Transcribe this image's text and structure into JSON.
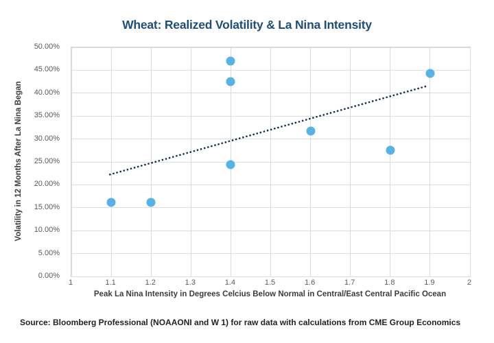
{
  "chart_data": {
    "type": "scatter",
    "title": "Wheat: Realized Volatility & La Nina Intensity",
    "xlabel": "Peak La Nina Intensity in Degrees Celcius Below Normal in Central/East Central Pacific Ocean",
    "ylabel": "Volatility in 12 Months After La Nina Began",
    "xlim": [
      1,
      2
    ],
    "ylim": [
      0,
      0.5
    ],
    "grid": true,
    "legend": "none",
    "x_ticks": [
      {
        "value": 1.0,
        "label": "1"
      },
      {
        "value": 1.1,
        "label": "1.1"
      },
      {
        "value": 1.2,
        "label": "1.2"
      },
      {
        "value": 1.3,
        "label": "1.3"
      },
      {
        "value": 1.4,
        "label": "1.4"
      },
      {
        "value": 1.5,
        "label": "1.5"
      },
      {
        "value": 1.6,
        "label": "1.6"
      },
      {
        "value": 1.7,
        "label": "1.7"
      },
      {
        "value": 1.8,
        "label": "1.8"
      },
      {
        "value": 1.9,
        "label": "1.9"
      },
      {
        "value": 2.0,
        "label": "2"
      }
    ],
    "y_ticks": [
      {
        "value": 0.0,
        "label": "0.00%"
      },
      {
        "value": 0.05,
        "label": "5.00%"
      },
      {
        "value": 0.1,
        "label": "10.00%"
      },
      {
        "value": 0.15,
        "label": "15.00%"
      },
      {
        "value": 0.2,
        "label": "20.00%"
      },
      {
        "value": 0.25,
        "label": "25.00%"
      },
      {
        "value": 0.3,
        "label": "30.00%"
      },
      {
        "value": 0.35,
        "label": "35.00%"
      },
      {
        "value": 0.4,
        "label": "40.00%"
      },
      {
        "value": 0.45,
        "label": "45.00%"
      },
      {
        "value": 0.5,
        "label": "50.00%"
      }
    ],
    "points": [
      {
        "x": 1.1,
        "y": 0.161
      },
      {
        "x": 1.2,
        "y": 0.161
      },
      {
        "x": 1.4,
        "y": 0.244
      },
      {
        "x": 1.4,
        "y": 0.425
      },
      {
        "x": 1.4,
        "y": 0.47
      },
      {
        "x": 1.6,
        "y": 0.318
      },
      {
        "x": 1.8,
        "y": 0.275
      },
      {
        "x": 1.9,
        "y": 0.443
      }
    ],
    "trendline": {
      "style": "dotted",
      "x1": 1.095,
      "y1": 0.222,
      "x2": 1.89,
      "y2": 0.415
    },
    "colors": {
      "marker": "#57B3E6",
      "trendline": "#13294B",
      "title": "#1F4E79",
      "gridline": "#DCDCDC",
      "tick_text": "#595959",
      "axis_title_text": "#3D3D3D",
      "source_text": "#222222"
    }
  },
  "source": {
    "text": "Source: Bloomberg Professional (NOAAONI and W 1) for raw data with calculations from CME Group Economics"
  }
}
